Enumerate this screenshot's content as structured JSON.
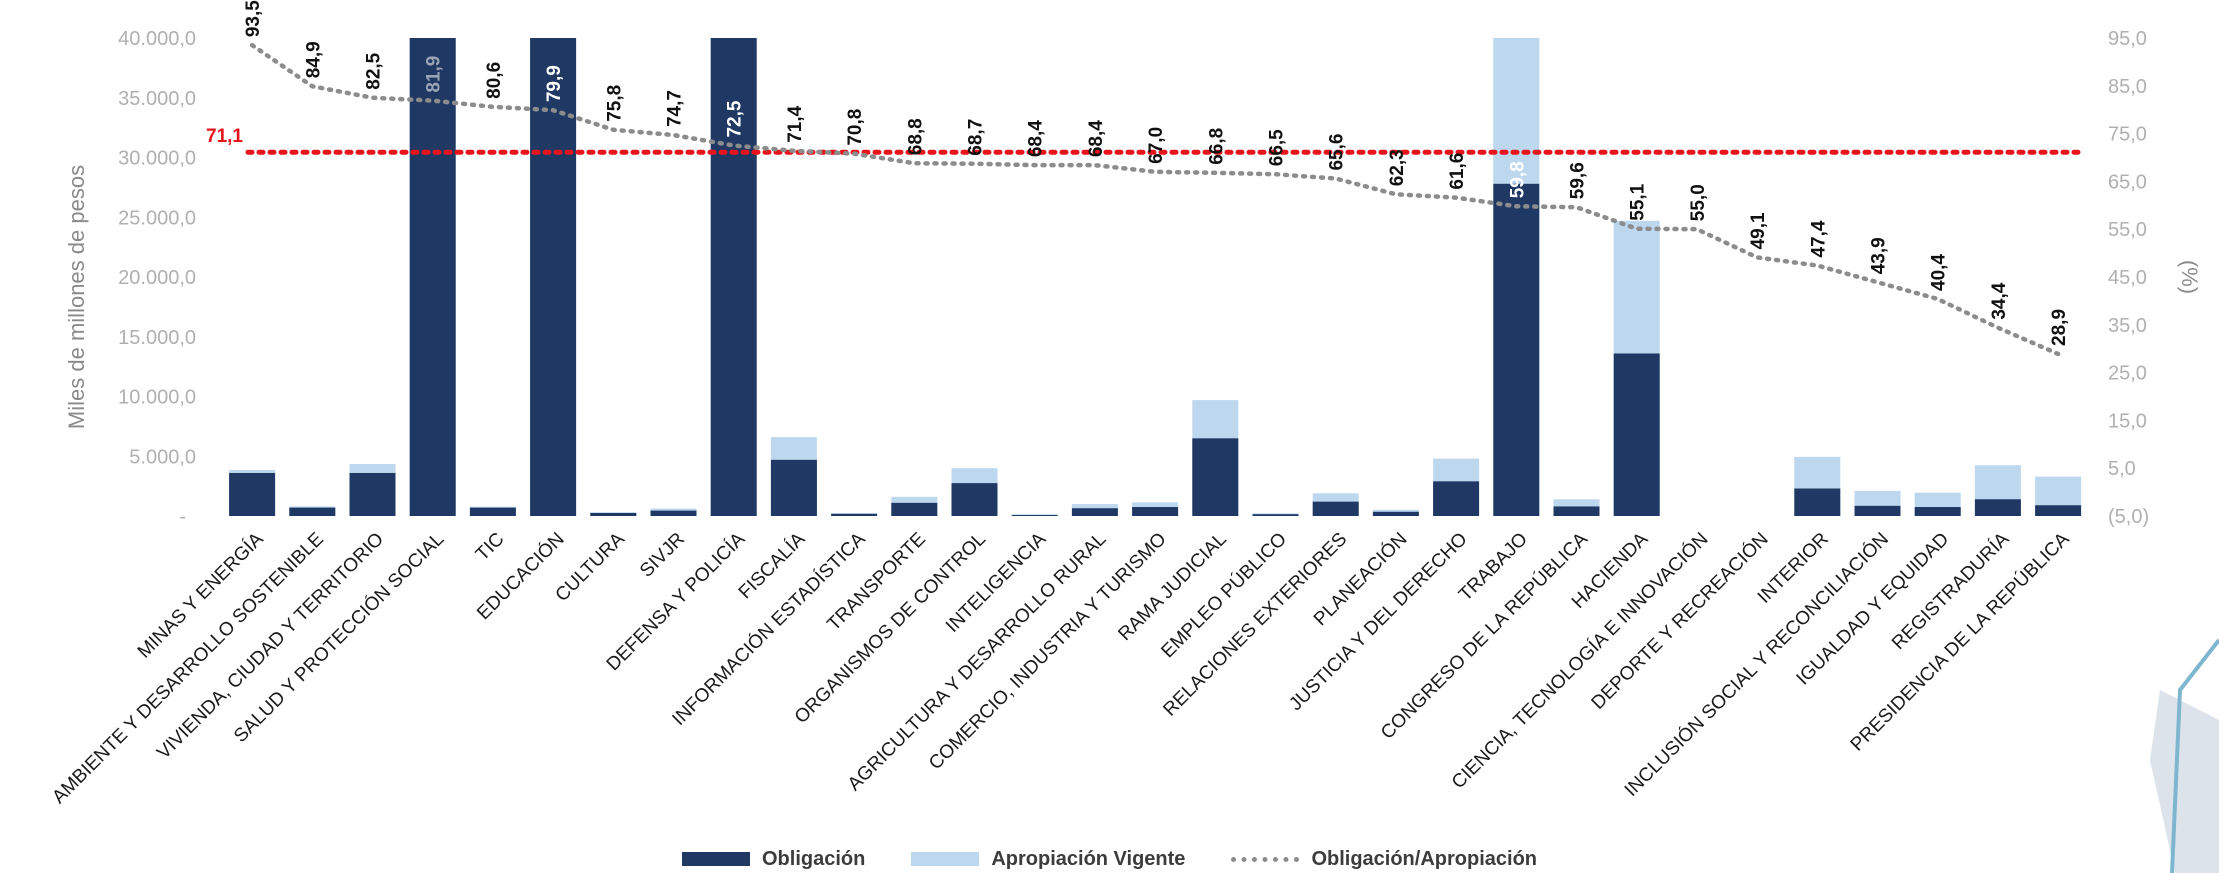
{
  "chart_data": {
    "type": "bar",
    "ylabel": "Miles de millones de pesos",
    "y2label": "(%)",
    "ylim": [
      0,
      40000
    ],
    "y2lim": [
      -5,
      95
    ],
    "yticks": [
      "5.000,0",
      "10.000,0",
      "15.000,0",
      "20.000,0",
      "25.000,0",
      "30.000,0",
      "35.000,0",
      "40.000,0"
    ],
    "y2ticks": [
      "(5,0)",
      "5,0",
      "15,0",
      "25,0",
      "35,0",
      "45,0",
      "55,0",
      "65,0",
      "75,0",
      "85,0",
      "95,0"
    ],
    "y0_label": "-",
    "categories": [
      "MINAS Y ENERGÍA",
      "AMBIENTE Y DESARROLLO SOSTENIBLE",
      "VIVIENDA, CIUDAD Y TERRITORIO",
      "SALUD Y PROTECCIÓN SOCIAL",
      "TIC",
      "EDUCACIÓN",
      "CULTURA",
      "SIVJR",
      "DEFENSA Y POLICÍA",
      "FISCALÍA",
      "INFORMACIÓN ESTADÍSTICA",
      "TRANSPORTE",
      "ORGANISMOS DE CONTROL",
      "INTELIGENCIA",
      "AGRICULTURA Y DESARROLLO RURAL",
      "COMERCIO, INDUSTRIA Y TURISMO",
      "RAMA JUDICIAL",
      "EMPLEO PÚBLICO",
      "RELACIONES EXTERIORES",
      "PLANEACIÓN",
      "JUSTICIA Y DEL DERECHO",
      "TRABAJO",
      "CONGRESO DE LA REPÚBLICA",
      "HACIENDA",
      "CIENCIA, TECNOLOGÍA E INNOVACIÓN",
      "DEPORTE Y RECREACIÓN",
      "INTERIOR",
      "INCLUSIÓN SOCIAL Y RECONCILIACIÓN",
      "IGUALDAD Y EQUIDAD",
      "REGISTRADURÍA",
      "PRESIDENCIA DE LA REPÚBLICA"
    ],
    "series": [
      {
        "name": "Obligación",
        "kind": "bar",
        "color": "#1f3864",
        "values": [
          3600,
          700,
          3600,
          40000,
          700,
          40000,
          250,
          450,
          40000,
          4700,
          180,
          1100,
          2750,
          80,
          650,
          750,
          6500,
          150,
          1200,
          350,
          2900,
          27800,
          800,
          13600,
          0,
          0,
          2300,
          850,
          750,
          1400,
          900
        ]
      },
      {
        "name": "Apropiación Vigente",
        "kind": "bar",
        "color": "#bdd7ee",
        "values": [
          3850,
          800,
          4350,
          40000,
          780,
          40000,
          320,
          620,
          40000,
          6600,
          240,
          1600,
          4000,
          150,
          1000,
          1150,
          9700,
          220,
          1900,
          520,
          4800,
          40000,
          1400,
          24700,
          0,
          0,
          4950,
          2100,
          1950,
          4250,
          3300
        ]
      },
      {
        "name": "Obligación/Apropiación",
        "kind": "line",
        "color": "#8c8c8c",
        "values": [
          93.5,
          84.9,
          82.5,
          81.9,
          80.6,
          79.9,
          75.8,
          74.7,
          72.5,
          71.4,
          70.8,
          68.8,
          68.7,
          68.4,
          68.4,
          67.0,
          66.8,
          66.5,
          65.6,
          62.3,
          61.6,
          59.8,
          59.6,
          55.1,
          55.0,
          49.1,
          47.4,
          43.9,
          40.4,
          34.4,
          28.9
        ],
        "labels": [
          "93,5",
          "84,9",
          "82,5",
          "81,9",
          "80,6",
          "79,9",
          "75,8",
          "74,7",
          "72,5",
          "71,4",
          "70,8",
          "68,8",
          "68,7",
          "68,4",
          "68,4",
          "67,0",
          "66,8",
          "66,5",
          "65,6",
          "62,3",
          "61,6",
          "59,8",
          "59,6",
          "55,1",
          "55,0",
          "49,1",
          "47,4",
          "43,9",
          "40,4",
          "34,4",
          "28,9"
        ]
      }
    ],
    "reference_line": {
      "value": 71.1,
      "label": "71,1",
      "color": "#e8141b"
    },
    "legend_position": "bottom",
    "grid": false
  }
}
